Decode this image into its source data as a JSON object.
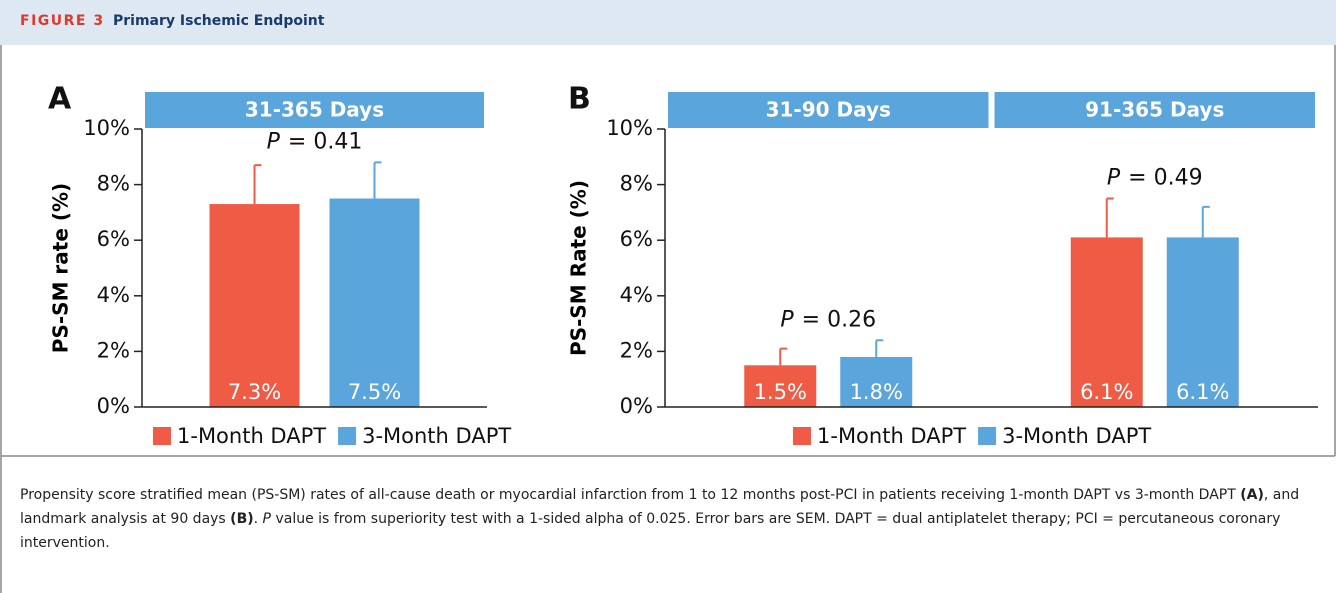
{
  "header": {
    "label": "FIGURE 3",
    "title": "Primary Ischemic Endpoint"
  },
  "chart_data": [
    {
      "type": "bar",
      "panel": "A",
      "ylabel": "PS-SM rate (%)",
      "categories": [
        "31-365 Days"
      ],
      "series": [
        {
          "name": "1-Month DAPT",
          "color": "#ef5b45",
          "values": [
            7.3
          ],
          "value_labels": [
            "7.3%"
          ],
          "errors": [
            1.4
          ]
        },
        {
          "name": "3-Month DAPT",
          "color": "#5aa5db",
          "values": [
            7.5
          ],
          "value_labels": [
            "7.5%"
          ],
          "errors": [
            1.3
          ]
        }
      ],
      "annotations": [
        {
          "italic": "P",
          "text": "= 0.41"
        }
      ],
      "ylim": [
        0,
        10
      ],
      "yticks": [
        {
          "value": 0,
          "label": "0%"
        },
        {
          "value": 2,
          "label": "2%"
        },
        {
          "value": 4,
          "label": "4%"
        },
        {
          "value": 6,
          "label": "6%"
        },
        {
          "value": 8,
          "label": "8%"
        },
        {
          "value": 10,
          "label": "10%"
        }
      ]
    },
    {
      "type": "bar",
      "panel": "B",
      "ylabel": "PS-SM Rate (%)",
      "categories": [
        "31-90 Days",
        "91-365 Days"
      ],
      "series": [
        {
          "name": "1-Month DAPT",
          "color": "#ef5b45",
          "values": [
            1.5,
            6.1
          ],
          "value_labels": [
            "1.5%",
            "6.1%"
          ],
          "errors": [
            0.6,
            1.4
          ]
        },
        {
          "name": "3-Month DAPT",
          "color": "#5aa5db",
          "values": [
            1.8,
            6.1
          ],
          "value_labels": [
            "1.8%",
            "6.1%"
          ],
          "errors": [
            0.6,
            1.1
          ]
        }
      ],
      "annotations": [
        {
          "italic": "P",
          "text": "= 0.26"
        },
        {
          "italic": "P",
          "text": "= 0.49"
        }
      ],
      "ylim": [
        0,
        10
      ],
      "yticks": [
        {
          "value": 0,
          "label": "0%"
        },
        {
          "value": 2,
          "label": "2%"
        },
        {
          "value": 4,
          "label": "4%"
        },
        {
          "value": 6,
          "label": "6%"
        },
        {
          "value": 8,
          "label": "8%"
        },
        {
          "value": 10,
          "label": "10%"
        }
      ]
    }
  ],
  "caption": [
    {
      "text": "Propensity score stratified mean (PS-SM) rates of all-cause death or myocardial infarction from 1 to 12 months post-PCI in patients receiving 1-month DAPT vs 3-month DAPT "
    },
    {
      "text": "(A)",
      "style": "bold"
    },
    {
      "text": ", and landmark analysis at 90 days "
    },
    {
      "text": "(B)",
      "style": "bold"
    },
    {
      "text": ". "
    },
    {
      "text": "P",
      "style": "italic"
    },
    {
      "text": " value is from superiority test with a 1-sided alpha of 0.025. Error bars are SEM. DAPT = dual antiplatelet therapy; PCI = percutaneous coronary intervention."
    }
  ]
}
